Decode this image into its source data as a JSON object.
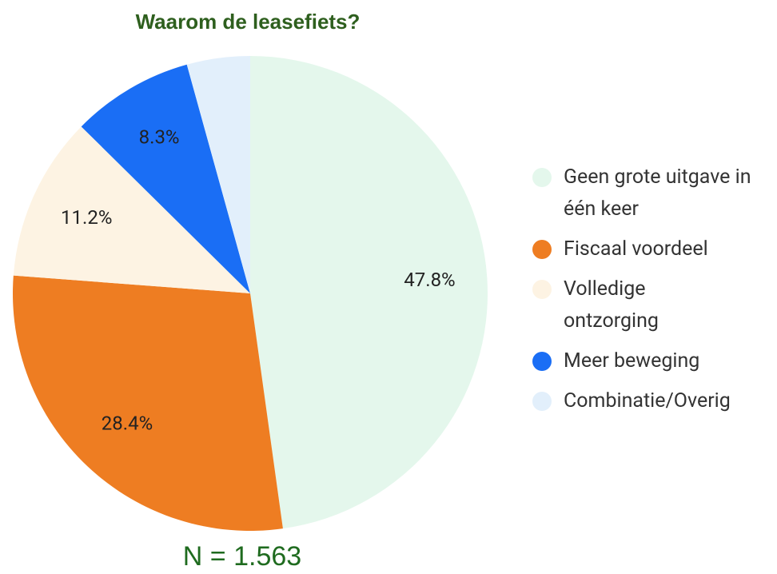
{
  "chart_data": {
    "type": "pie",
    "title": "Waarom de leasefiets?",
    "categories": [
      "Geen grote uitgave in één keer",
      "Fiscaal voordeel",
      "Volledige ontzorging",
      "Meer beweging",
      "Combinatie/Overig"
    ],
    "values": [
      47.8,
      28.4,
      11.2,
      8.3,
      4.3
    ],
    "value_labels": [
      "47.8%",
      "28.4%",
      "11.2%",
      "8.3%",
      null
    ],
    "colors": [
      "#e4f7ec",
      "#ee7d22",
      "#fdf3e3",
      "#1a6ef5",
      "#e2effb"
    ],
    "note": "N = 1.563",
    "legend": "right"
  }
}
